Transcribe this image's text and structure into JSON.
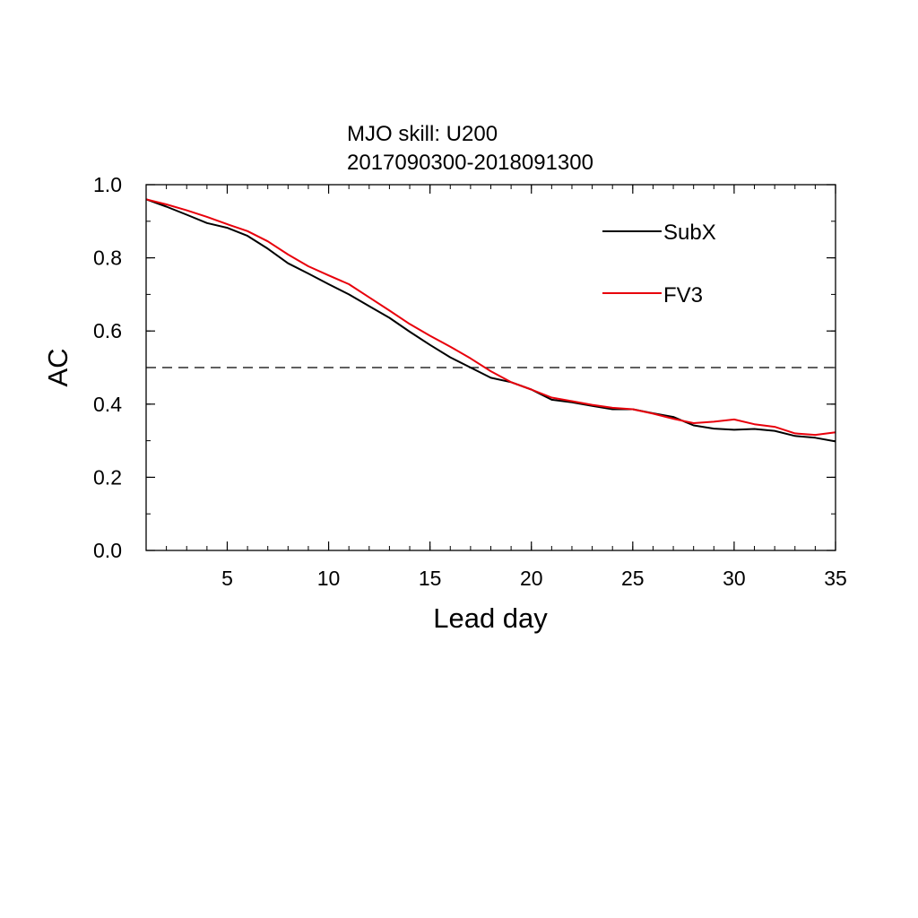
{
  "chart_data": {
    "type": "line",
    "title_lines": [
      "MJO skill: U200",
      "2017090300-2018091300"
    ],
    "xlabel": "Lead day",
    "ylabel": "AC",
    "xlim": [
      1,
      35
    ],
    "ylim": [
      0,
      1
    ],
    "x_ticks": [
      5,
      10,
      15,
      20,
      25,
      30,
      35
    ],
    "y_ticks": [
      "0.0",
      "0.2",
      "0.4",
      "0.6",
      "0.8",
      "1.0"
    ],
    "x_minor_step": 1,
    "y_minor_step": 0.1,
    "reference_line": {
      "y": 0.5,
      "style": "dashed"
    },
    "legend_position": "top-right",
    "x": [
      1,
      2,
      3,
      4,
      5,
      6,
      7,
      8,
      9,
      10,
      11,
      12,
      13,
      14,
      15,
      16,
      17,
      18,
      19,
      20,
      21,
      22,
      23,
      24,
      25,
      26,
      27,
      28,
      29,
      30,
      31,
      32,
      33,
      34,
      35
    ],
    "series": [
      {
        "name": "SubX",
        "color": "#000000",
        "values": [
          0.96,
          0.94,
          0.918,
          0.895,
          0.882,
          0.86,
          0.825,
          0.785,
          0.757,
          0.728,
          0.7,
          0.668,
          0.636,
          0.598,
          0.562,
          0.528,
          0.5,
          0.472,
          0.46,
          0.44,
          0.412,
          0.405,
          0.395,
          0.386,
          0.386,
          0.375,
          0.365,
          0.342,
          0.333,
          0.33,
          0.332,
          0.327,
          0.313,
          0.308,
          0.298
        ]
      },
      {
        "name": "FV3",
        "color": "#e8000b",
        "values": [
          0.96,
          0.946,
          0.93,
          0.912,
          0.892,
          0.873,
          0.845,
          0.809,
          0.777,
          0.752,
          0.728,
          0.692,
          0.656,
          0.619,
          0.587,
          0.557,
          0.525,
          0.49,
          0.46,
          0.44,
          0.418,
          0.408,
          0.398,
          0.39,
          0.386,
          0.374,
          0.36,
          0.348,
          0.352,
          0.358,
          0.345,
          0.338,
          0.32,
          0.316,
          0.323
        ]
      }
    ]
  }
}
